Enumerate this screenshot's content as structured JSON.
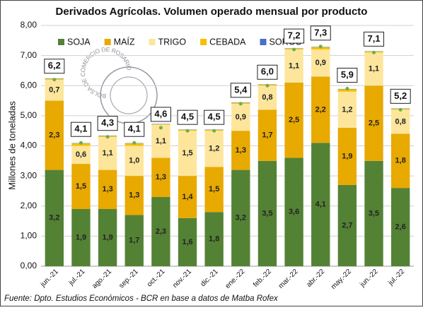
{
  "chart_data": {
    "type": "stacked_bar",
    "title": "Derivados Agrícolas. Volumen operado mensual por producto",
    "y_label": "Millones de toneladas",
    "source": "Fuente: Dpto. Estudios Económicos - BCR en base a datos de Matba Rofex",
    "logo_text": "BOLSA DE COMERCIO DE ROSARIO",
    "categories": [
      "jun.-21",
      "jul.-21",
      "ago.-21",
      "sep.-21",
      "oct.-21",
      "nov.-21",
      "dic.-21",
      "ene.-22",
      "feb.-22",
      "mar.-22",
      "abr.-22",
      "may.-22",
      "jun.-22",
      "jul.-22"
    ],
    "series": [
      {
        "name": "SOJA",
        "color": "#548235",
        "values": [
          3.2,
          1.9,
          1.9,
          1.7,
          2.3,
          1.6,
          1.8,
          3.2,
          3.5,
          3.6,
          4.1,
          2.7,
          3.5,
          2.6
        ],
        "value_labels": [
          "3,2",
          "1,9",
          "1,9",
          "1,7",
          "2,3",
          "1,6",
          "1,8",
          "3,2",
          "3,5",
          "3,6",
          "4,1",
          "2,7",
          "3,5",
          "2,6"
        ]
      },
      {
        "name": "MAÍZ",
        "color": "#e8a900",
        "values": [
          2.3,
          1.5,
          1.3,
          1.3,
          1.3,
          1.4,
          1.5,
          1.3,
          1.7,
          2.5,
          2.2,
          1.9,
          2.5,
          1.8
        ],
        "value_labels": [
          "2,3",
          "1,5",
          "1,3",
          "1,3",
          "1,3",
          "1,4",
          "1,5",
          "1,3",
          "1,7",
          "2,5",
          "2,2",
          "1,9",
          "2,5",
          "1,8"
        ]
      },
      {
        "name": "TRIGO",
        "color": "#fde69c",
        "values": [
          0.7,
          0.6,
          1.1,
          1.0,
          1.1,
          1.5,
          1.2,
          0.9,
          0.8,
          1.1,
          0.9,
          1.2,
          1.1,
          0.8
        ],
        "value_labels": [
          "0,7",
          "0,6",
          "1,1",
          "1,0",
          "1,1",
          "1,5",
          "1,2",
          "0,9",
          "0,8",
          "1,1",
          "0,9",
          "1,2",
          "1,1",
          "0,8"
        ]
      },
      {
        "name": "CEBADA",
        "color": "#f5c000",
        "values": [
          0.03,
          0.08,
          0.03,
          0.08,
          0.02,
          0.03,
          0.03,
          0.03,
          0.03,
          0.03,
          0.08,
          0.08,
          0.03,
          0.03
        ]
      },
      {
        "name": "SORGO",
        "color": "#4472c4",
        "values": [
          0.01,
          0.01,
          0.01,
          0.01,
          0.01,
          0.01,
          0.01,
          0.01,
          0.01,
          0.01,
          0.01,
          0.01,
          0.01,
          0.01
        ]
      }
    ],
    "totals": {
      "color": "#70ad47",
      "values": [
        6.2,
        4.1,
        4.3,
        4.1,
        4.6,
        4.5,
        4.5,
        5.4,
        6.0,
        7.2,
        7.3,
        5.9,
        7.1,
        5.2
      ],
      "value_labels": [
        "6,2",
        "4,1",
        "4,3",
        "4,1",
        "4,6",
        "4,5",
        "4,5",
        "5,4",
        "6,0",
        "7,2",
        "7,3",
        "5,9",
        "7,1",
        "5,2"
      ]
    },
    "ylim": [
      0,
      8
    ],
    "yticks": [
      {
        "value": 0,
        "label": "0,00"
      },
      {
        "value": 1,
        "label": "1,00"
      },
      {
        "value": 2,
        "label": "2,00"
      },
      {
        "value": 3,
        "label": "3,00"
      },
      {
        "value": 4,
        "label": "4,00"
      },
      {
        "value": 5,
        "label": "5,00"
      },
      {
        "value": 6,
        "label": "6,00"
      },
      {
        "value": 7,
        "label": "7,00"
      },
      {
        "value": 8,
        "label": "8,00"
      }
    ],
    "grid": true,
    "legend": "top"
  }
}
